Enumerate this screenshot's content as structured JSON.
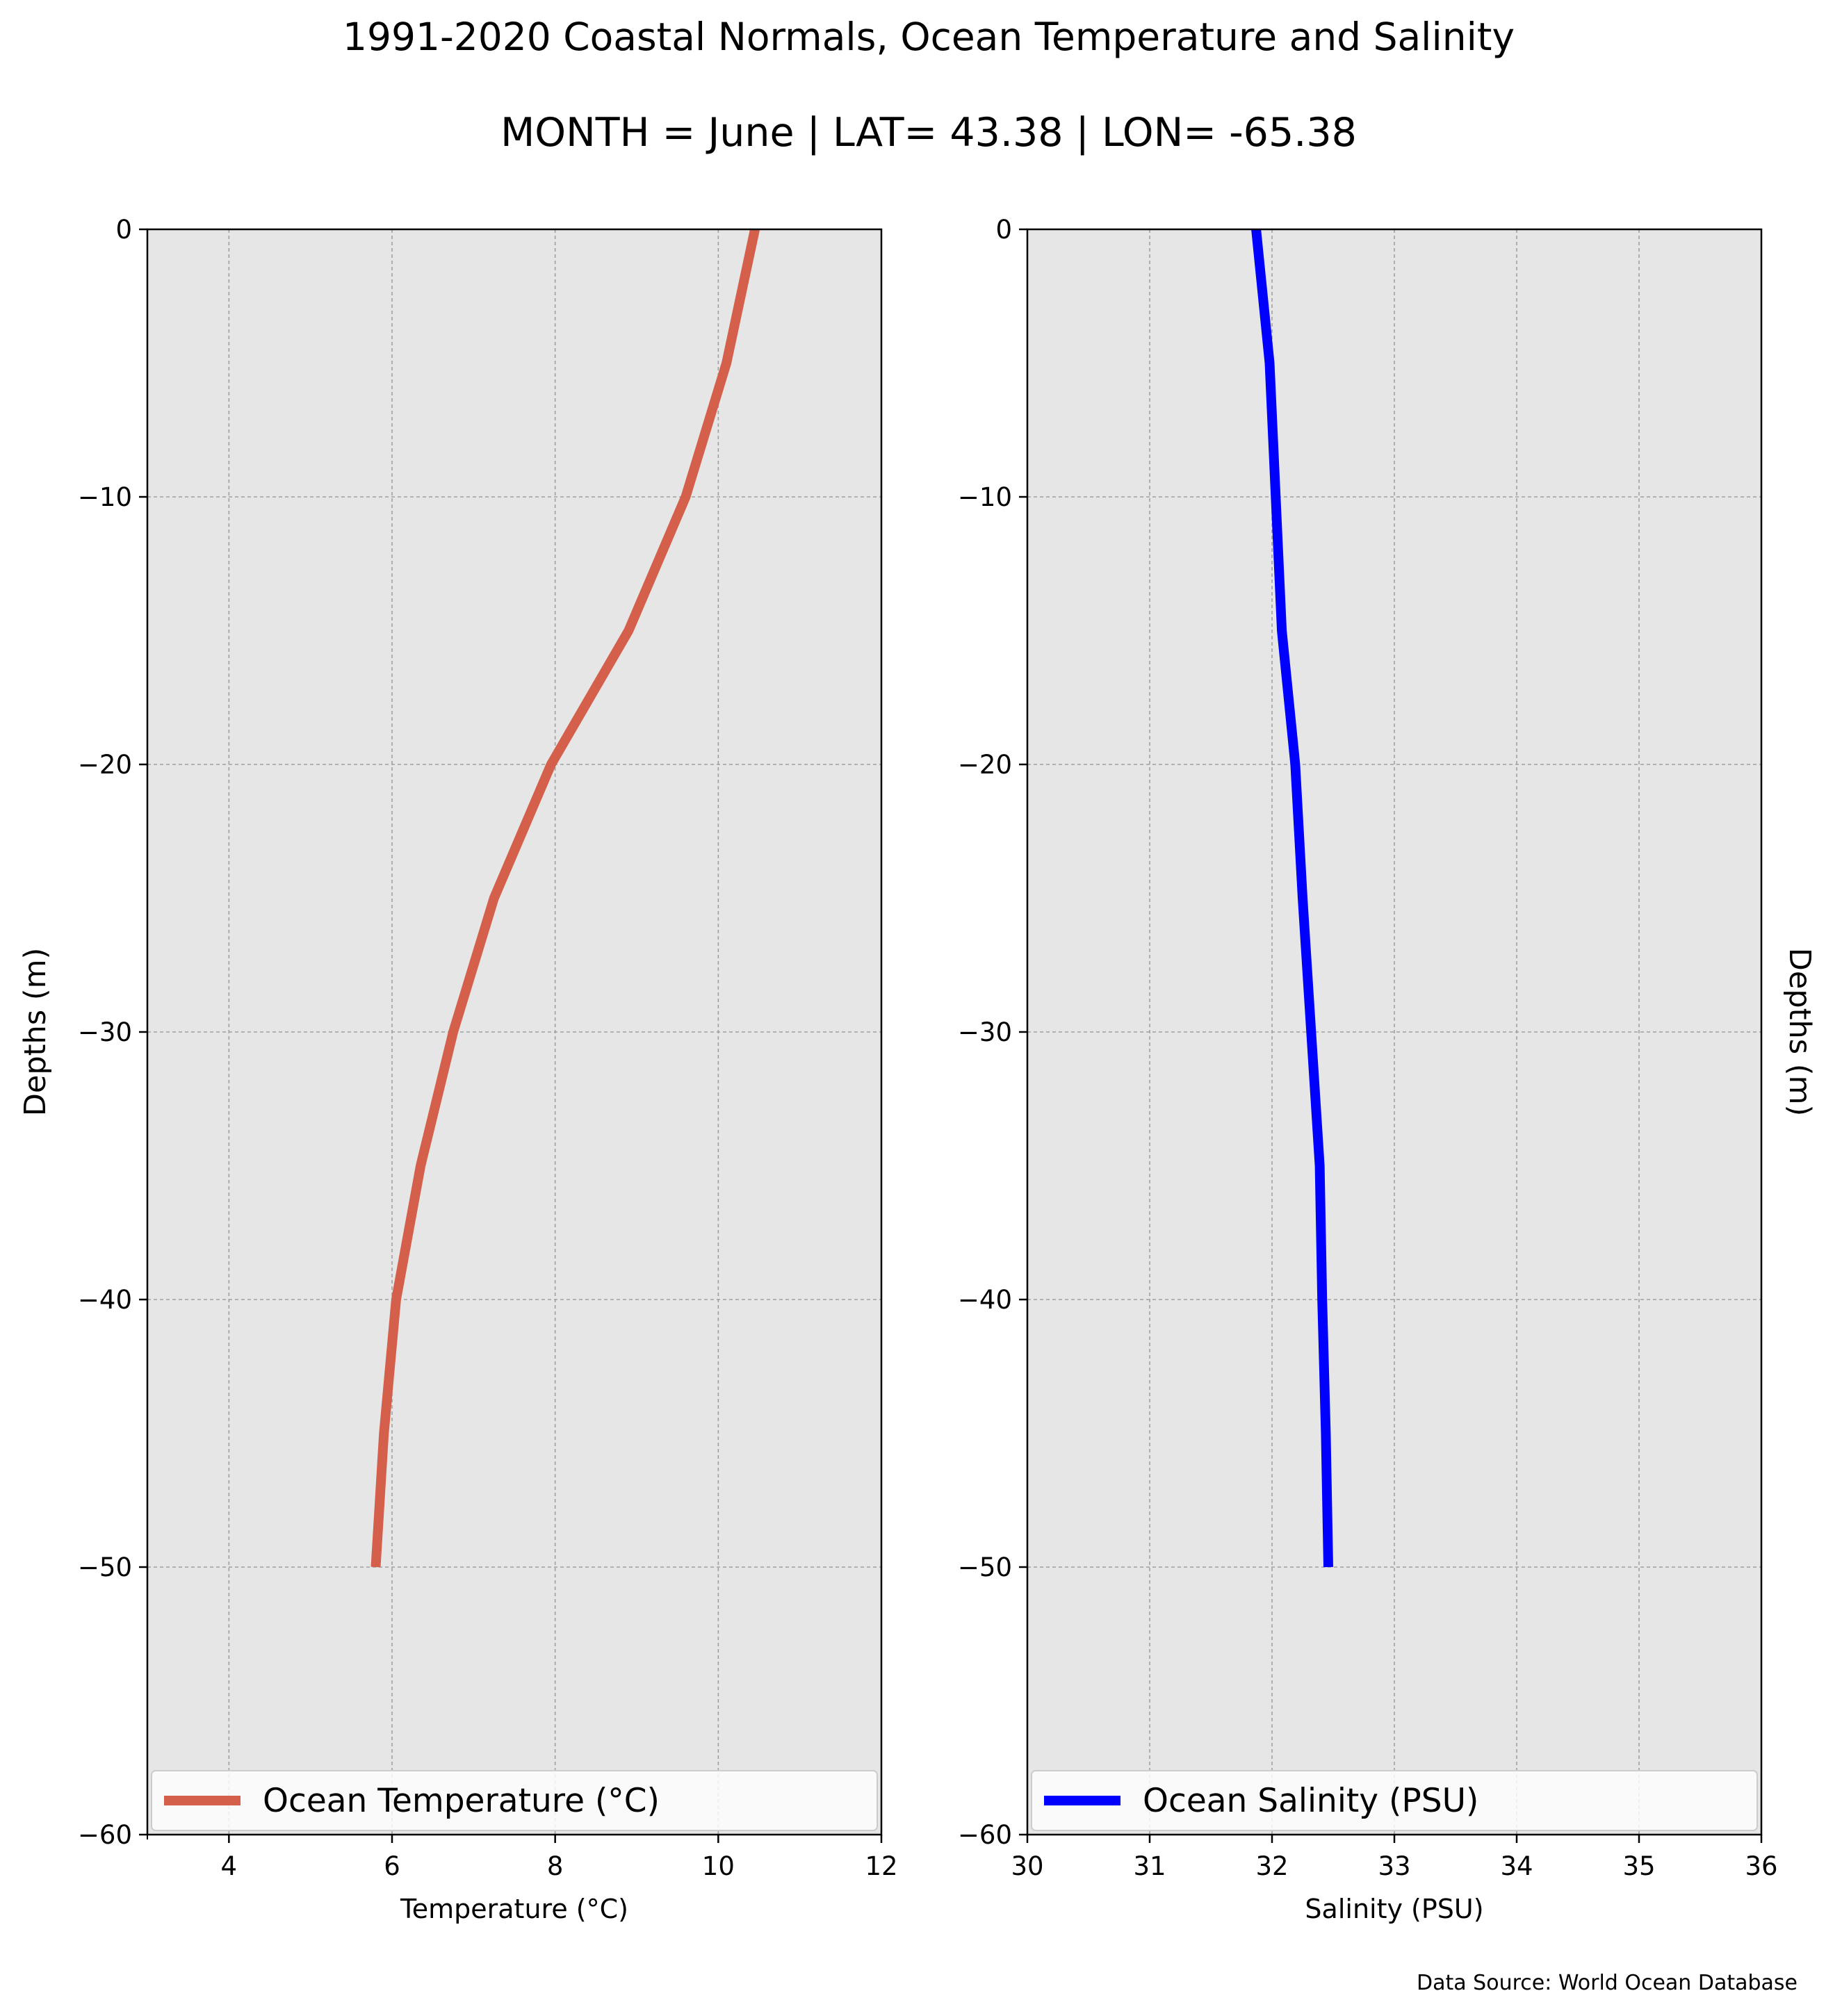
{
  "title": "1991-2020 Coastal Normals, Ocean Temperature and Salinity",
  "subtitle": "MONTH = June | LAT= 43.38 | LON= -65.38",
  "source_note": "Data Source: World Ocean Database",
  "colors": {
    "panel_background": "#e6e6e6",
    "grid": "#a0a0a0",
    "temperature_line": "#d45f4b",
    "salinity_line": "#0000ff"
  },
  "chart_data": [
    {
      "type": "line",
      "title": "",
      "xlabel": "Temperature ($^\\circ$C)",
      "xlabel_display": "Temperature (°C)",
      "ylabel": "Depths (m)",
      "xlim": [
        3,
        12
      ],
      "ylim": [
        -60,
        0
      ],
      "xticks": [
        4,
        6,
        8,
        10,
        12
      ],
      "xtick_labels": [
        "4",
        "6",
        "8",
        "10",
        "12"
      ],
      "yticks": [
        0,
        -10,
        -20,
        -30,
        -40,
        -50,
        -60
      ],
      "ytick_labels": [
        "0",
        "−10",
        "−20",
        "−30",
        "−40",
        "−50",
        "−60"
      ],
      "grid": true,
      "legend_position": "bottom",
      "series": [
        {
          "name": "Ocean Temperature (°C)",
          "color": "#d45f4b",
          "x": [
            10.45,
            10.1,
            9.6,
            8.9,
            7.95,
            7.25,
            6.75,
            6.35,
            6.05,
            5.9,
            5.8
          ],
          "y": [
            0,
            -5,
            -10,
            -15,
            -20,
            -25,
            -30,
            -35,
            -40,
            -45,
            -50
          ]
        }
      ]
    },
    {
      "type": "line",
      "title": "",
      "xlabel": "Salinity (PSU)",
      "ylabel": "Depths (m)",
      "xlim": [
        30,
        36
      ],
      "ylim": [
        -60,
        0
      ],
      "xticks": [
        30,
        31,
        32,
        33,
        34,
        35,
        36
      ],
      "xtick_labels": [
        "30",
        "31",
        "32",
        "33",
        "34",
        "35",
        "36"
      ],
      "yticks": [
        0,
        -10,
        -20,
        -30,
        -40,
        -50,
        -60
      ],
      "ytick_labels": [
        "0",
        "−10",
        "−20",
        "−30",
        "−40",
        "−50",
        "−60"
      ],
      "grid": true,
      "legend_position": "bottom",
      "series": [
        {
          "name": "Ocean Salinity (PSU)",
          "color": "#0000ff",
          "x": [
            31.87,
            31.98,
            32.03,
            32.08,
            32.19,
            32.25,
            32.32,
            32.39,
            32.41,
            32.44,
            32.46
          ],
          "y": [
            0,
            -5,
            -10,
            -15,
            -20,
            -25,
            -30,
            -35,
            -40,
            -45,
            -50
          ]
        }
      ]
    }
  ]
}
